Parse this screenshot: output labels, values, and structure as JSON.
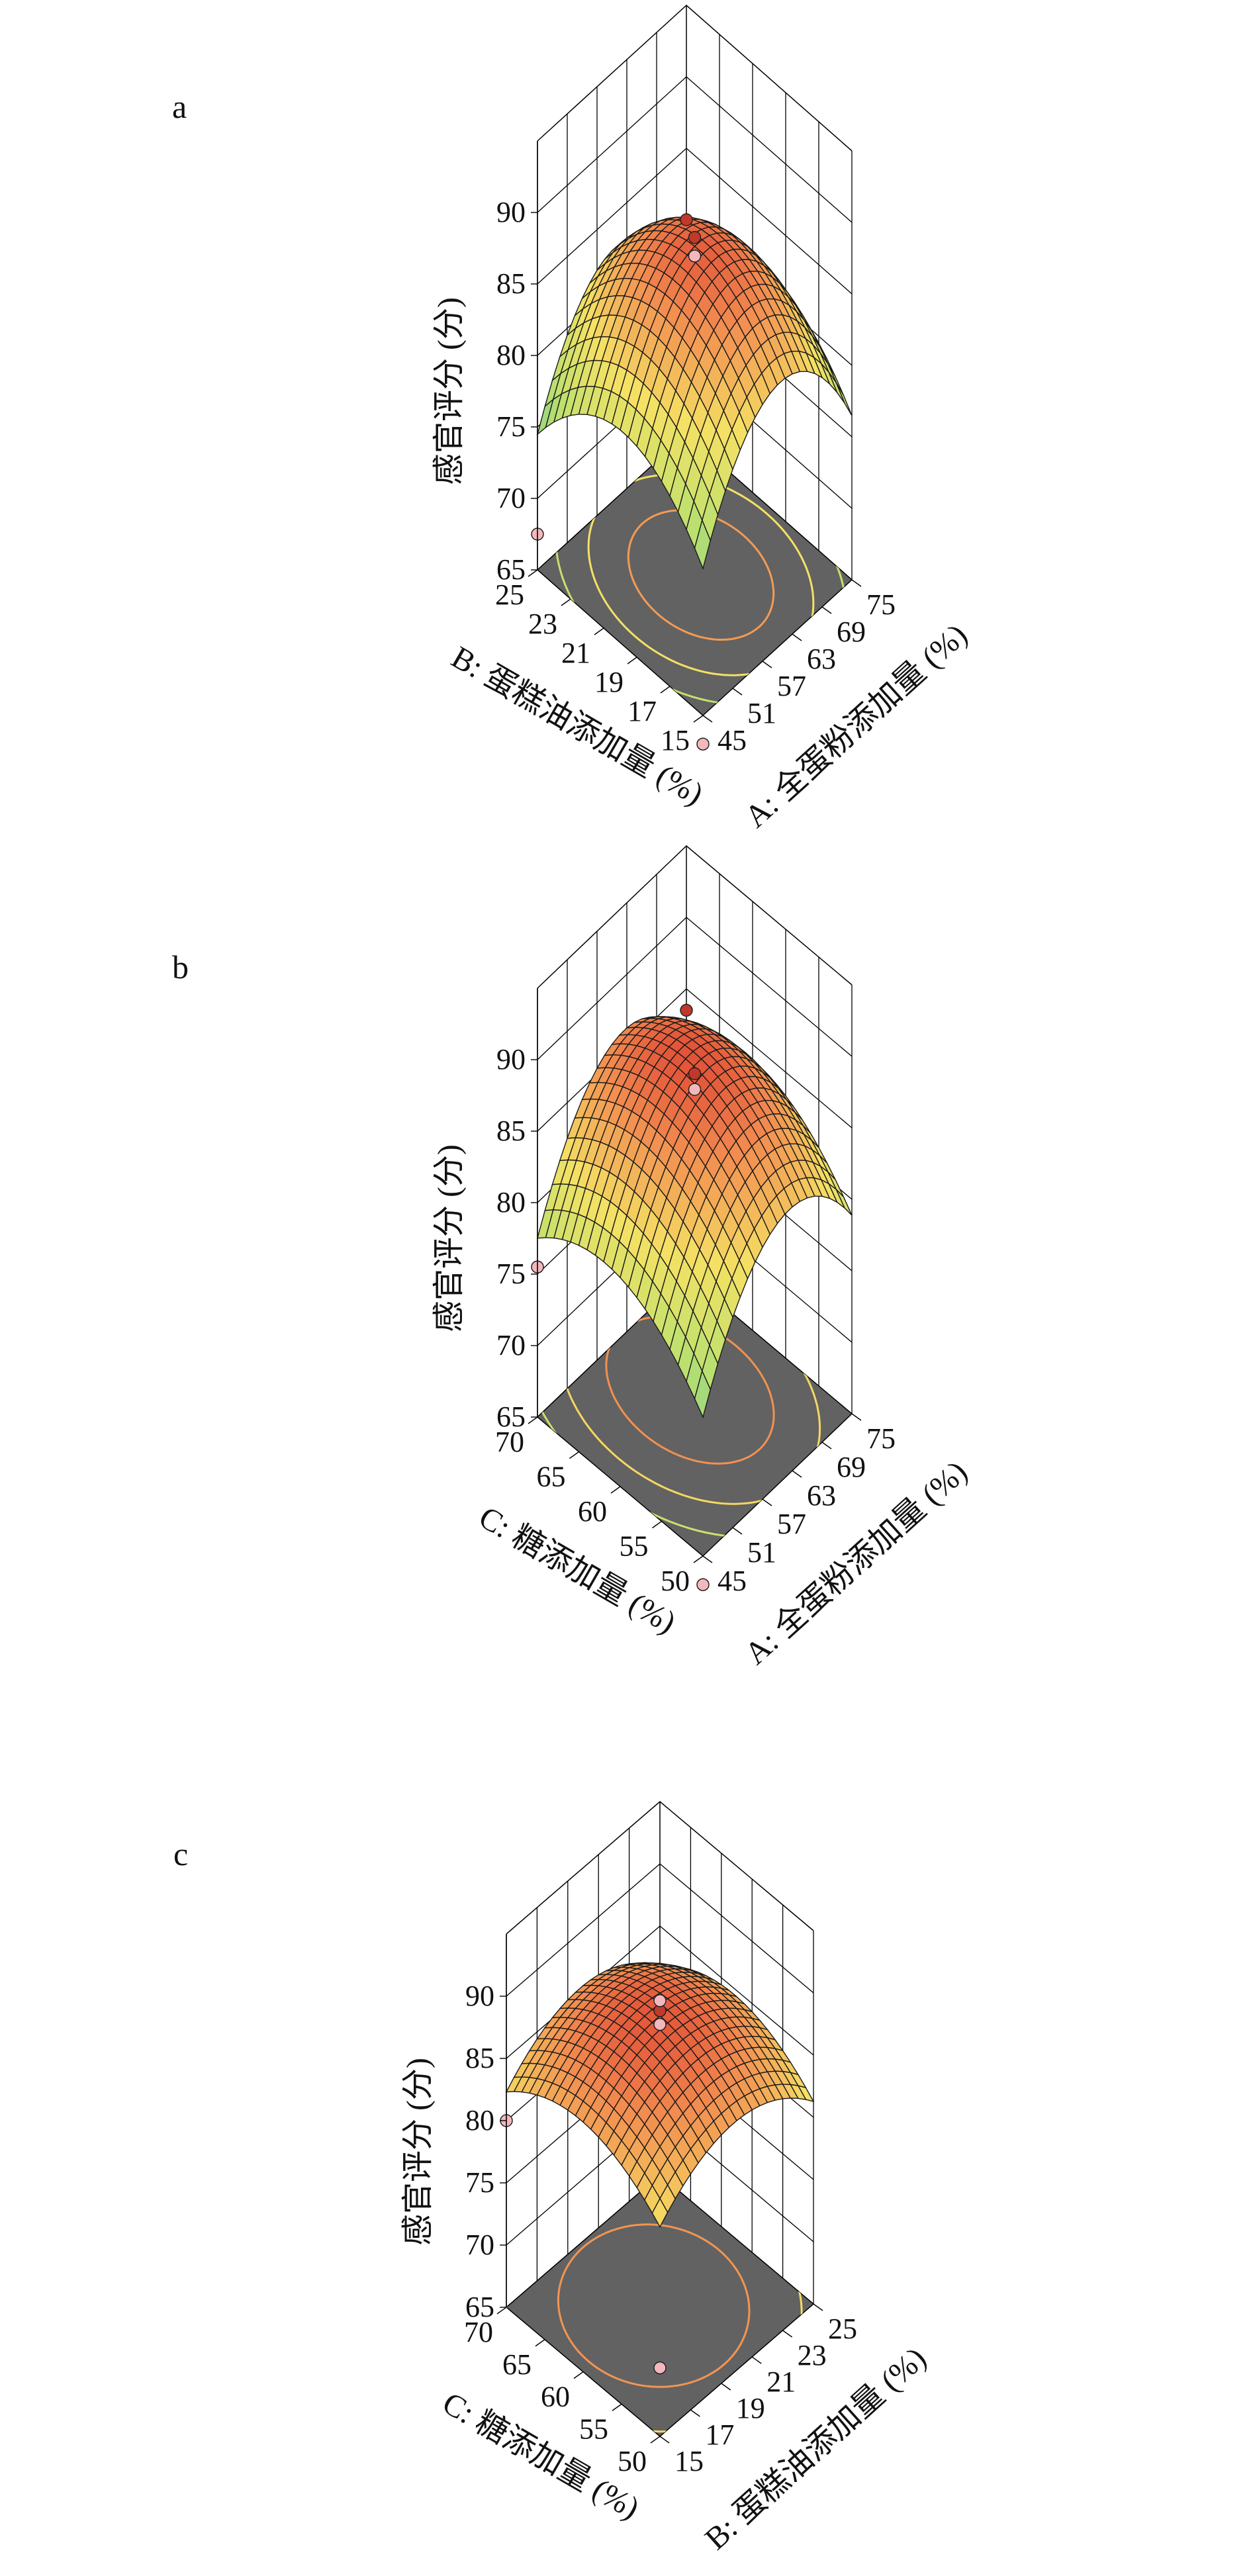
{
  "chart_data": [
    {
      "type": "surface",
      "panel_label": "a",
      "zlabel": "感官评分 (分)",
      "zlim": [
        65,
        90
      ],
      "zticks": [
        "65",
        "70",
        "75",
        "80",
        "85",
        "90"
      ],
      "x_axis": {
        "label": "A: 全蛋粉添加量 (%)",
        "range": [
          45,
          75
        ],
        "ticks": [
          "45",
          "51",
          "57",
          "63",
          "69",
          "75"
        ]
      },
      "y_axis": {
        "label": "B: 蛋糕油添加量 (%)",
        "range": [
          15,
          25
        ],
        "ticks": [
          "15",
          "17",
          "19",
          "21",
          "23",
          "25"
        ]
      },
      "model": {
        "peak": 88,
        "center_u": 0.52,
        "center_v": 0.48,
        "a": 30,
        "b": 20
      },
      "design_points": [
        {
          "x": 60,
          "y": 20,
          "z": 87.3
        },
        {
          "x": 60,
          "y": 20,
          "z": 88.6
        },
        {
          "x": 75,
          "y": 25,
          "z": 80.0
        },
        {
          "x": 45,
          "y": 25,
          "z": 67.5
        },
        {
          "x": 45,
          "y": 15,
          "z": 63.0
        }
      ],
      "grid": true,
      "contours_on_floor": true
    },
    {
      "type": "surface",
      "panel_label": "b",
      "zlabel": "感官评分 (分)",
      "zlim": [
        65,
        90
      ],
      "zticks": [
        "65",
        "70",
        "75",
        "80",
        "85",
        "90"
      ],
      "x_axis": {
        "label": "A: 全蛋粉添加量 (%)",
        "range": [
          45,
          75
        ],
        "ticks": [
          "45",
          "51",
          "57",
          "63",
          "69",
          "75"
        ]
      },
      "y_axis": {
        "label": "C: 糖添加量 (%)",
        "range": [
          50,
          70
        ],
        "ticks": [
          "50",
          "55",
          "60",
          "65",
          "70"
        ]
      },
      "model": {
        "peak": 88.5,
        "center_u": 0.58,
        "center_v": 0.6,
        "a": 26,
        "b": 14
      },
      "design_points": [
        {
          "x": 60,
          "y": 60,
          "z": 87.8
        },
        {
          "x": 60,
          "y": 60,
          "z": 88.9
        },
        {
          "x": 75,
          "y": 70,
          "z": 83.5
        },
        {
          "x": 45,
          "y": 70,
          "z": 75.5
        },
        {
          "x": 45,
          "y": 50,
          "z": 63.0
        }
      ],
      "grid": true,
      "contours_on_floor": true
    },
    {
      "type": "surface",
      "panel_label": "c",
      "zlabel": "感官评分 (分)",
      "zlim": [
        65,
        90
      ],
      "zticks": [
        "65",
        "70",
        "75",
        "80",
        "85",
        "90"
      ],
      "x_axis": {
        "label": "B: 蛋糕油添加量 (%)",
        "range": [
          15,
          25
        ],
        "ticks": [
          "15",
          "17",
          "19",
          "21",
          "23",
          "25"
        ]
      },
      "y_axis": {
        "label": "C: 糖添加量 (%)",
        "range": [
          50,
          70
        ],
        "ticks": [
          "50",
          "55",
          "60",
          "65",
          "70"
        ]
      },
      "model": {
        "peak": 88.3,
        "center_u": 0.48,
        "center_v": 0.52,
        "a": 14,
        "b": 12
      },
      "design_points": [
        {
          "x": 20,
          "y": 60,
          "z": 87.6
        },
        {
          "x": 20,
          "y": 60,
          "z": 88.7
        },
        {
          "x": 25,
          "y": 70,
          "z": 79.0
        },
        {
          "x": 15,
          "y": 70,
          "z": 80.0
        },
        {
          "x": 15,
          "y": 50,
          "z": 70.5
        }
      ],
      "grid": true,
      "contours_on_floor": true
    }
  ]
}
